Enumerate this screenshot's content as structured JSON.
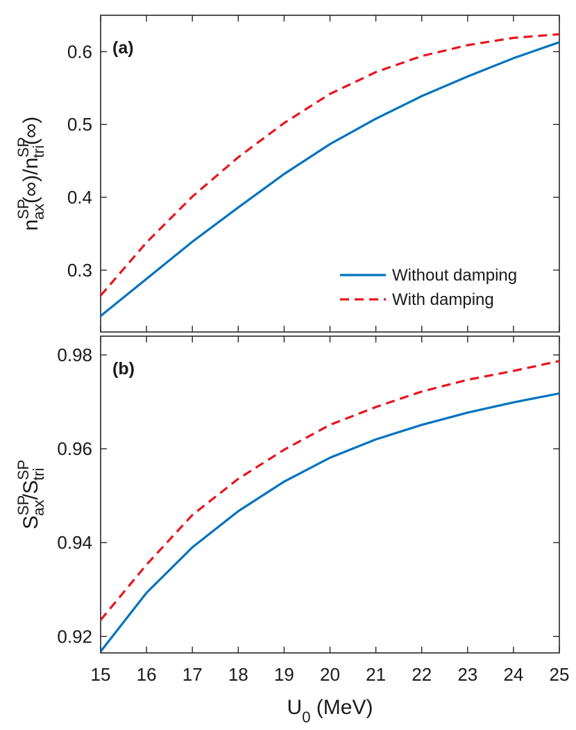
{
  "chart_data": [
    {
      "id": "panel-a",
      "type": "line",
      "panel_label": "(a)",
      "ylabel": {
        "base": "n",
        "sup1": "SP",
        "sub1": "ax",
        "mid": "(∞)/n",
        "sup2": "SP",
        "sub2": "tri",
        "end": "(∞)"
      },
      "xlim": [
        15,
        25
      ],
      "ylim": [
        0.215,
        0.65
      ],
      "yticks": [
        0.3,
        0.4,
        0.5,
        0.6
      ],
      "ytick_labels": [
        "0.3",
        "0.4",
        "0.5",
        "0.6"
      ],
      "x": [
        15,
        16,
        17,
        18,
        19,
        20,
        21,
        22,
        23,
        24,
        25
      ],
      "series": [
        {
          "name": "Without damping",
          "color": "#0072bd",
          "style": "solid",
          "values": [
            0.237,
            0.288,
            0.339,
            0.386,
            0.432,
            0.473,
            0.508,
            0.539,
            0.566,
            0.591,
            0.613
          ]
        },
        {
          "name": "With damping",
          "color": "#e8141c",
          "style": "dashed",
          "values": [
            0.265,
            0.338,
            0.401,
            0.455,
            0.502,
            0.542,
            0.572,
            0.594,
            0.609,
            0.619,
            0.624
          ]
        }
      ],
      "legend": {
        "location": "lower-right",
        "entries": [
          "Without damping",
          "With damping"
        ]
      }
    },
    {
      "id": "panel-b",
      "type": "line",
      "panel_label": "(b)",
      "ylabel": {
        "base": "S",
        "sup1": "SP",
        "sub1": "ax",
        "mid": "/S",
        "sup2": "SP",
        "sub2": "tri",
        "end": ""
      },
      "xlabel": {
        "base": "U",
        "sub": "0",
        "rest": " (MeV)"
      },
      "xlim": [
        15,
        25
      ],
      "ylim": [
        0.9165,
        0.984
      ],
      "yticks": [
        0.92,
        0.94,
        0.96,
        0.98
      ],
      "ytick_labels": [
        "0.92",
        "0.94",
        "0.96",
        "0.98"
      ],
      "x": [
        15,
        16,
        17,
        18,
        19,
        20,
        21,
        22,
        23,
        24,
        25
      ],
      "xtick_labels": [
        "15",
        "16",
        "17",
        "18",
        "19",
        "20",
        "21",
        "22",
        "23",
        "24",
        "25"
      ],
      "series": [
        {
          "name": "Without damping",
          "color": "#0072bd",
          "style": "solid",
          "values": [
            0.9168,
            0.9293,
            0.939,
            0.9467,
            0.953,
            0.9581,
            0.962,
            0.9651,
            0.9677,
            0.9699,
            0.9718
          ]
        },
        {
          "name": "With damping",
          "color": "#e8141c",
          "style": "dashed",
          "values": [
            0.9235,
            0.9353,
            0.9459,
            0.9536,
            0.9598,
            0.9651,
            0.9689,
            0.9722,
            0.9747,
            0.9766,
            0.9787
          ]
        }
      ]
    }
  ]
}
